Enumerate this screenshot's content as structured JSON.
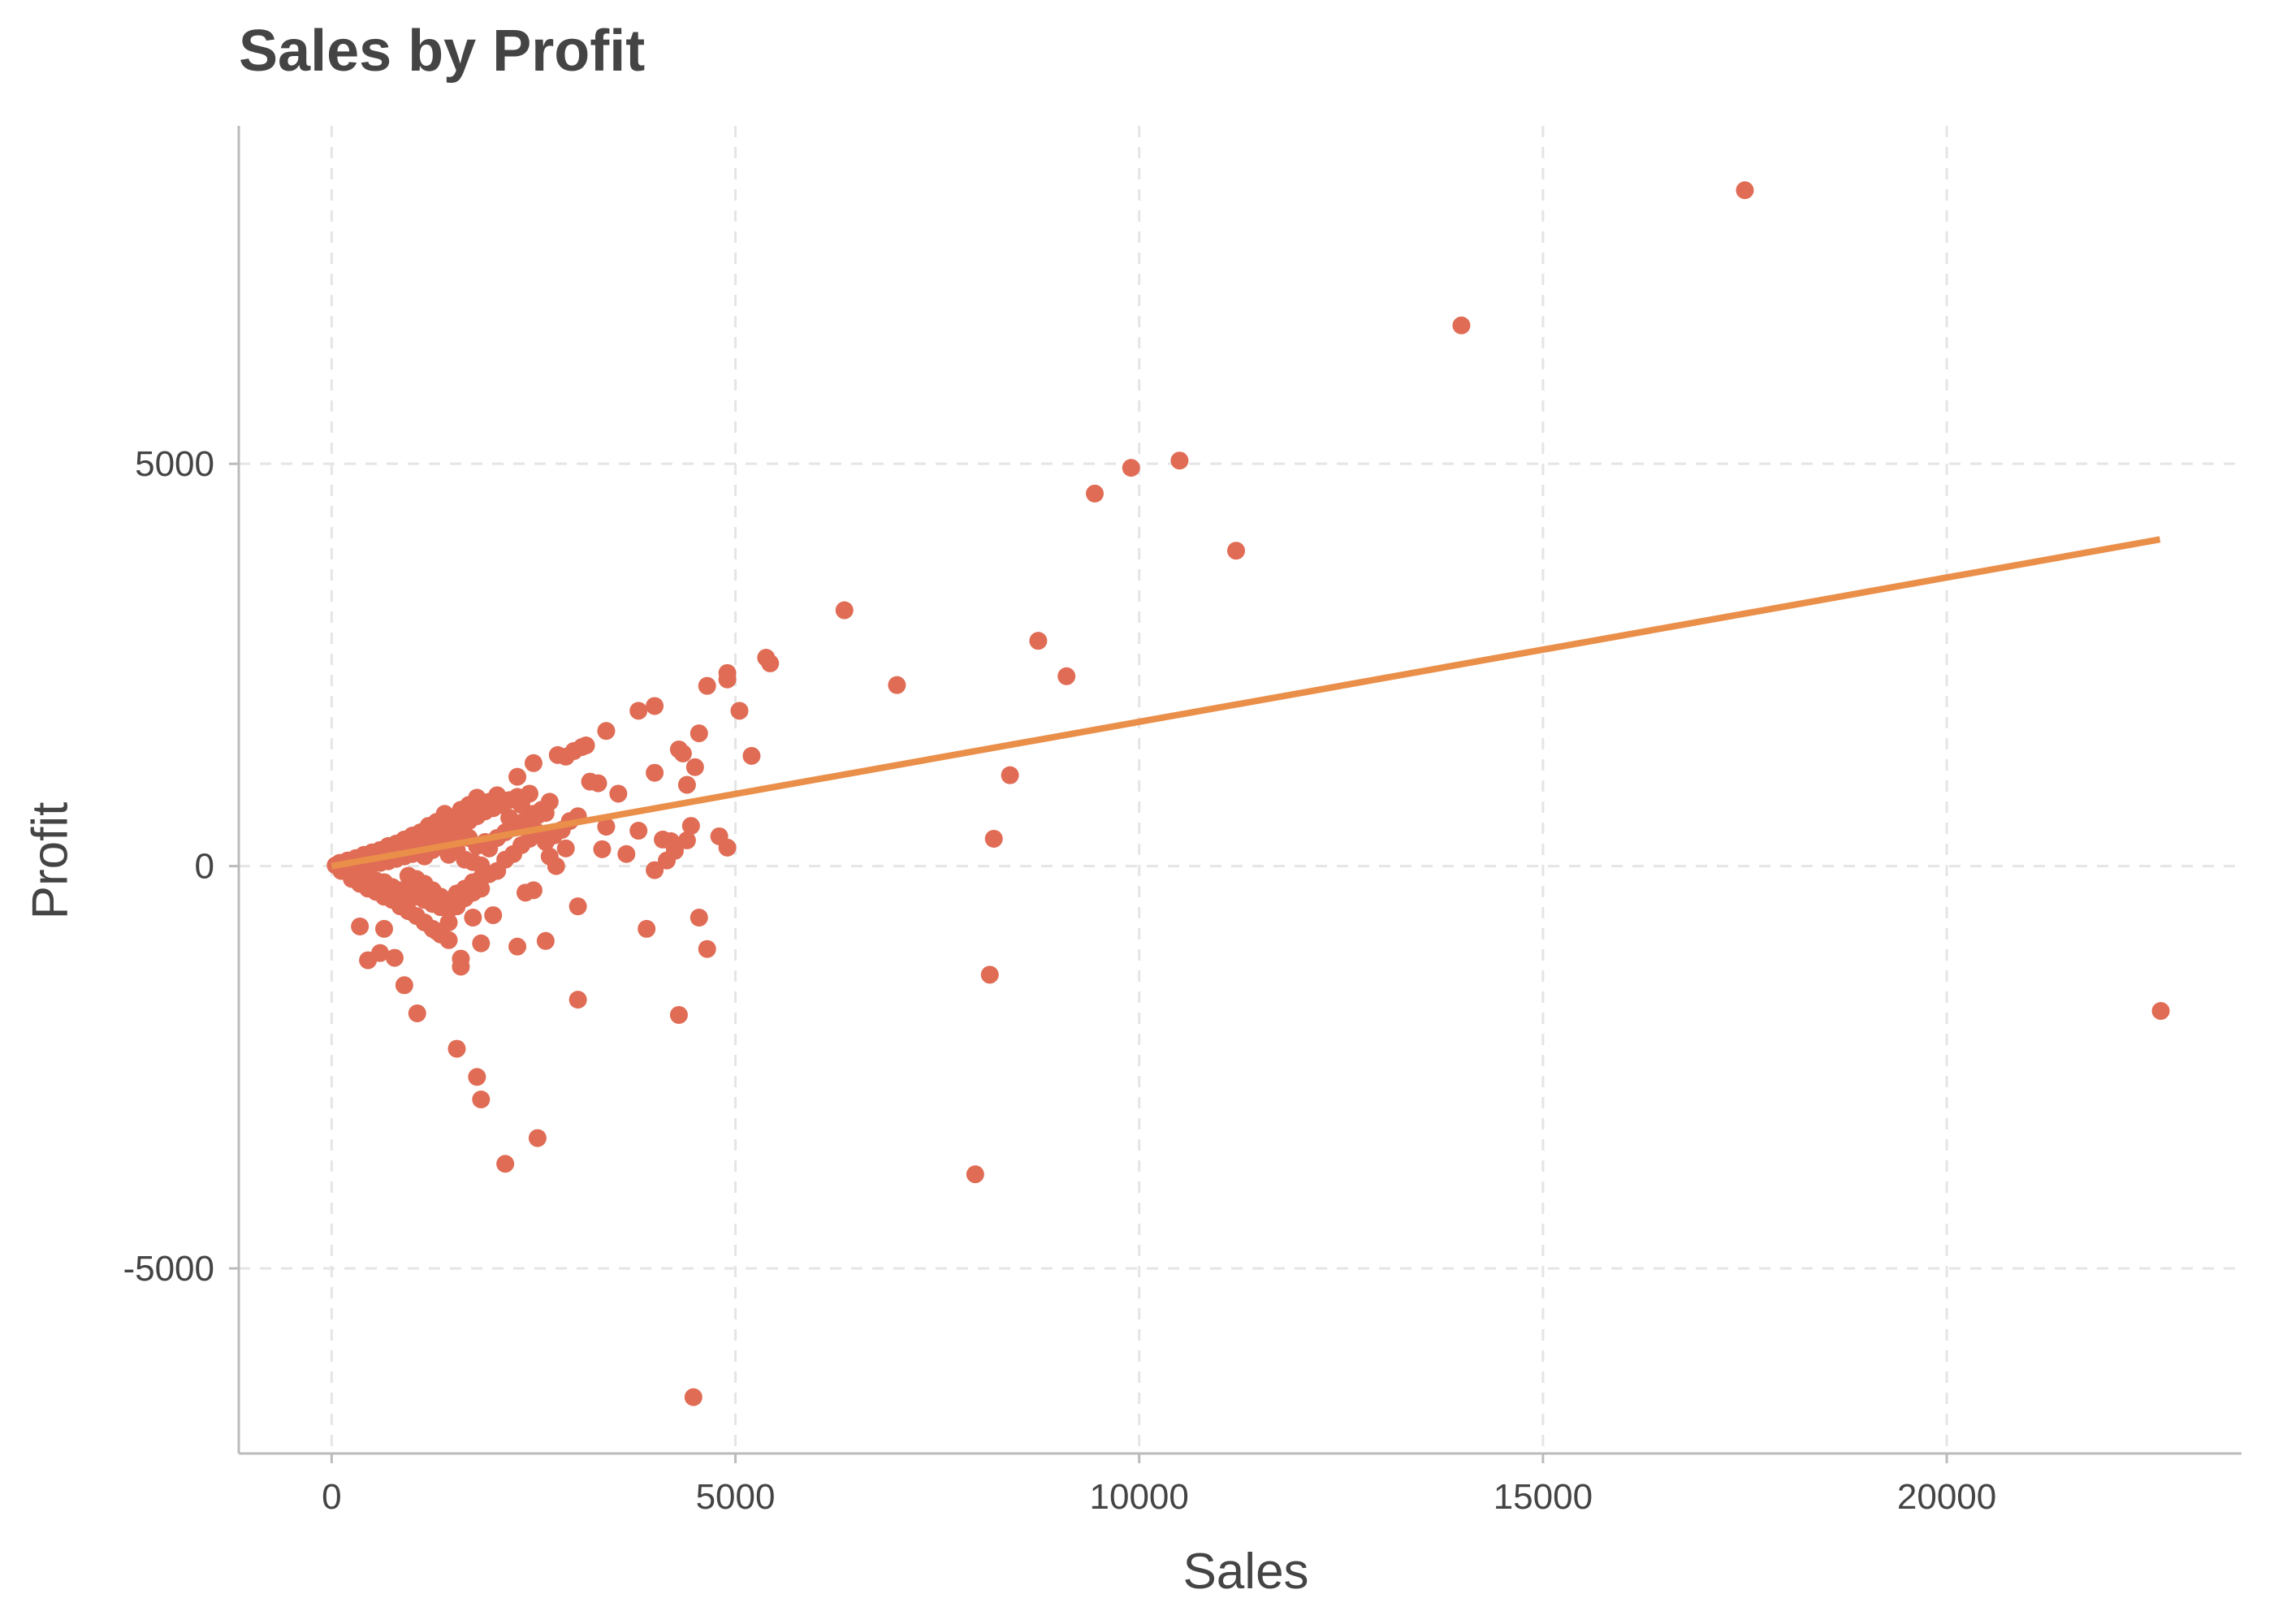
{
  "chart_data": {
    "type": "scatter",
    "title": "Sales by Profit",
    "xlabel": "Sales",
    "ylabel": "Profit",
    "xlim": [
      -1150,
      23650
    ],
    "ylim": [
      -7300,
      9200
    ],
    "x_ticks": [
      0,
      5000,
      10000,
      15000,
      20000
    ],
    "y_ticks": [
      -5000,
      0,
      5000
    ],
    "x_tick_labels": [
      "0",
      "5000",
      "10000",
      "15000",
      "20000"
    ],
    "y_tick_labels": [
      "-5000",
      "0",
      "5000"
    ],
    "grid": true,
    "legend": "none",
    "colors": {
      "points": "#E06C55",
      "trend": "#EA8F4A",
      "grid": "#E5E5E5",
      "axis": "#BBBBBB"
    },
    "trend_line": {
      "x": [
        0,
        22640
      ],
      "y": [
        0,
        4060
      ]
    },
    "points": [
      [
        17500,
        8400
      ],
      [
        13990,
        6720
      ],
      [
        10500,
        5040
      ],
      [
        9900,
        4950
      ],
      [
        9450,
        4630
      ],
      [
        11200,
        3920
      ],
      [
        6350,
        3180
      ],
      [
        8750,
        2800
      ],
      [
        9100,
        2360
      ],
      [
        7000,
        2250
      ],
      [
        5380,
        2590
      ],
      [
        5430,
        2520
      ],
      [
        4900,
        2400
      ],
      [
        4900,
        2320
      ],
      [
        4650,
        2240
      ],
      [
        5050,
        1930
      ],
      [
        5200,
        1370
      ],
      [
        4550,
        1650
      ],
      [
        4000,
        1990
      ],
      [
        3800,
        1930
      ],
      [
        3400,
        1680
      ],
      [
        8400,
        1130
      ],
      [
        4300,
        1450
      ],
      [
        4350,
        1400
      ],
      [
        4000,
        1160
      ],
      [
        4500,
        1230
      ],
      [
        4400,
        1010
      ],
      [
        3550,
        900
      ],
      [
        3200,
        1050
      ],
      [
        3300,
        1030
      ],
      [
        3000,
        1430
      ],
      [
        3100,
        1480
      ],
      [
        3150,
        1500
      ],
      [
        2900,
        1360
      ],
      [
        2800,
        1380
      ],
      [
        2500,
        1280
      ],
      [
        2300,
        1110
      ],
      [
        3400,
        490
      ],
      [
        3350,
        210
      ],
      [
        3650,
        150
      ],
      [
        3800,
        440
      ],
      [
        4100,
        330
      ],
      [
        4200,
        310
      ],
      [
        4000,
        -50
      ],
      [
        4150,
        70
      ],
      [
        4450,
        500
      ],
      [
        4400,
        320
      ],
      [
        4250,
        190
      ],
      [
        4800,
        370
      ],
      [
        4900,
        230
      ],
      [
        8200,
        340
      ],
      [
        4550,
        -640
      ],
      [
        4650,
        -1030
      ],
      [
        3900,
        -780
      ],
      [
        8150,
        -1350
      ],
      [
        4300,
        -1850
      ],
      [
        3050,
        -1660
      ],
      [
        3050,
        -500
      ],
      [
        2650,
        -930
      ],
      [
        2500,
        -300
      ],
      [
        2400,
        -330
      ],
      [
        2300,
        -1000
      ],
      [
        2550,
        -3380
      ],
      [
        2150,
        -3700
      ],
      [
        1850,
        -2900
      ],
      [
        1800,
        -2620
      ],
      [
        1550,
        -2270
      ],
      [
        1060,
        -1830
      ],
      [
        900,
        -1480
      ],
      [
        1600,
        -1250
      ],
      [
        1600,
        -1150
      ],
      [
        1850,
        -960
      ],
      [
        2000,
        -610
      ],
      [
        1750,
        -640
      ],
      [
        1450,
        -920
      ],
      [
        1300,
        -810
      ],
      [
        780,
        -1140
      ],
      [
        600,
        -1080
      ],
      [
        650,
        -780
      ],
      [
        350,
        -750
      ],
      [
        450,
        -1170
      ],
      [
        7970,
        -3830
      ],
      [
        4480,
        -6600
      ],
      [
        22650,
        -1800
      ],
      [
        2780,
        0
      ],
      [
        2850,
        450
      ],
      [
        2600,
        700
      ],
      [
        2700,
        800
      ],
      [
        2500,
        650
      ],
      [
        2450,
        900
      ],
      [
        2350,
        760
      ],
      [
        2200,
        600
      ],
      [
        2050,
        880
      ],
      [
        1950,
        800
      ],
      [
        1800,
        850
      ],
      [
        1700,
        760
      ],
      [
        1600,
        700
      ],
      [
        1500,
        600
      ],
      [
        1400,
        650
      ],
      [
        1300,
        550
      ],
      [
        1200,
        500
      ],
      [
        1100,
        420
      ],
      [
        1000,
        380
      ],
      [
        900,
        330
      ],
      [
        800,
        280
      ],
      [
        700,
        250
      ],
      [
        600,
        200
      ],
      [
        500,
        170
      ],
      [
        400,
        140
      ],
      [
        300,
        100
      ],
      [
        200,
        70
      ],
      [
        100,
        40
      ],
      [
        50,
        10
      ],
      [
        150,
        20
      ],
      [
        250,
        -20
      ],
      [
        350,
        -80
      ],
      [
        450,
        -130
      ],
      [
        550,
        -180
      ],
      [
        650,
        -200
      ],
      [
        750,
        -260
      ],
      [
        850,
        -300
      ],
      [
        950,
        -340
      ],
      [
        1050,
        -380
      ],
      [
        1150,
        -420
      ],
      [
        1250,
        -470
      ],
      [
        1350,
        -510
      ],
      [
        1450,
        -540
      ],
      [
        1550,
        -340
      ],
      [
        1650,
        -280
      ],
      [
        1750,
        -200
      ],
      [
        1850,
        -150
      ],
      [
        1950,
        -100
      ],
      [
        2050,
        -60
      ],
      [
        2150,
        80
      ],
      [
        2250,
        150
      ],
      [
        2350,
        260
      ],
      [
        2450,
        340
      ],
      [
        2550,
        420
      ],
      [
        2650,
        300
      ],
      [
        2750,
        380
      ],
      [
        2950,
        560
      ],
      [
        3050,
        620
      ],
      [
        2900,
        220
      ],
      [
        2700,
        120
      ],
      [
        1900,
        300
      ],
      [
        1800,
        250
      ],
      [
        1700,
        350
      ],
      [
        1600,
        420
      ],
      [
        1500,
        380
      ],
      [
        1400,
        300
      ],
      [
        1300,
        260
      ],
      [
        1200,
        220
      ],
      [
        1100,
        180
      ],
      [
        1000,
        150
      ],
      [
        900,
        120
      ],
      [
        800,
        90
      ],
      [
        700,
        60
      ],
      [
        600,
        40
      ],
      [
        500,
        20
      ],
      [
        400,
        0
      ],
      [
        300,
        -20
      ],
      [
        200,
        -40
      ],
      [
        1150,
        120
      ],
      [
        1250,
        200
      ],
      [
        1350,
        260
      ],
      [
        1450,
        140
      ],
      [
        1550,
        200
      ],
      [
        1650,
        80
      ],
      [
        1750,
        50
      ],
      [
        1850,
        10
      ],
      [
        1950,
        220
      ],
      [
        2050,
        350
      ],
      [
        2150,
        420
      ],
      [
        2250,
        480
      ],
      [
        2350,
        540
      ],
      [
        2450,
        590
      ],
      [
        2550,
        630
      ],
      [
        2650,
        660
      ],
      [
        950,
        -120
      ],
      [
        1050,
        -160
      ],
      [
        1150,
        -220
      ],
      [
        1250,
        -300
      ],
      [
        1350,
        -380
      ],
      [
        1450,
        -440
      ],
      [
        1550,
        -500
      ],
      [
        1650,
        -400
      ],
      [
        1750,
        -330
      ],
      [
        1850,
        -280
      ],
      [
        750,
        -420
      ],
      [
        850,
        -500
      ],
      [
        950,
        -560
      ],
      [
        1050,
        -620
      ],
      [
        1150,
        -700
      ],
      [
        1250,
        -780
      ],
      [
        1350,
        -850
      ],
      [
        1450,
        -700
      ],
      [
        650,
        -380
      ],
      [
        550,
        -320
      ],
      [
        450,
        -280
      ],
      [
        350,
        -220
      ],
      [
        250,
        -160
      ],
      [
        120,
        -60
      ],
      [
        1500,
        300
      ],
      [
        1600,
        500
      ],
      [
        1000,
        280
      ],
      [
        1100,
        320
      ],
      [
        1200,
        360
      ],
      [
        1300,
        420
      ],
      [
        1400,
        470
      ],
      [
        1700,
        560
      ],
      [
        1800,
        620
      ],
      [
        1900,
        680
      ],
      [
        2000,
        720
      ],
      [
        2100,
        760
      ],
      [
        2200,
        820
      ],
      [
        2300,
        860
      ],
      [
        600,
        120
      ],
      [
        700,
        140
      ],
      [
        800,
        170
      ],
      [
        900,
        200
      ],
      [
        500,
        90
      ],
      [
        400,
        60
      ]
    ]
  }
}
